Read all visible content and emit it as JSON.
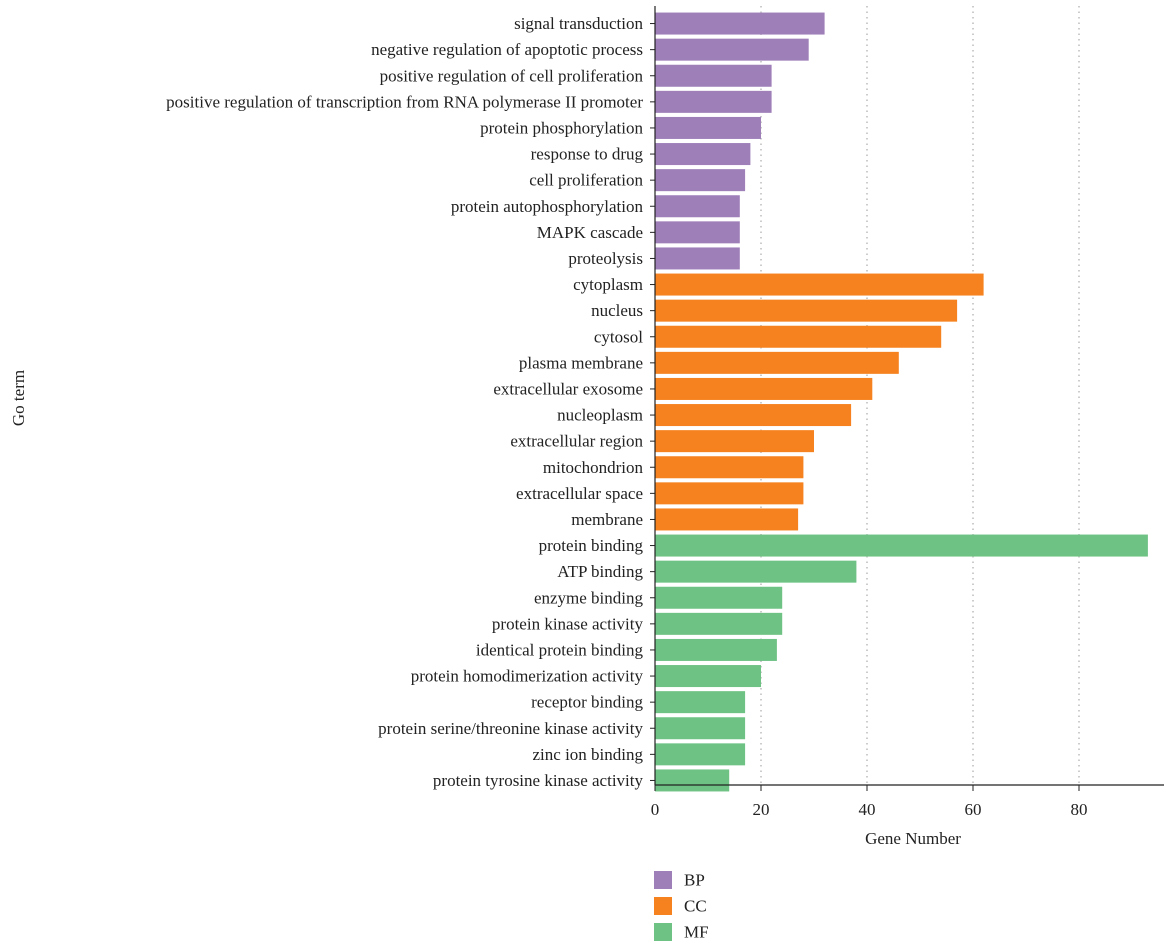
{
  "chart_data": {
    "type": "bar",
    "orientation": "horizontal",
    "xlabel": "Gene Number",
    "ylabel": "Go term",
    "xlim": [
      0,
      97
    ],
    "xticks": [
      0,
      20,
      40,
      60,
      80
    ],
    "grid": "vertical dotted",
    "legend_placement": "bottom",
    "colors": {
      "BP": "#9e7fb8",
      "CC": "#f5821f",
      "MF": "#6ec284"
    },
    "legend": [
      {
        "key": "BP",
        "label": "BP"
      },
      {
        "key": "CC",
        "label": "CC"
      },
      {
        "key": "MF",
        "label": "MF"
      }
    ],
    "bars": [
      {
        "label": "signal transduction",
        "value": 32,
        "group": "BP"
      },
      {
        "label": "negative regulation of apoptotic process",
        "value": 29,
        "group": "BP"
      },
      {
        "label": "positive regulation of cell proliferation",
        "value": 22,
        "group": "BP"
      },
      {
        "label": "positive regulation of transcription from RNA polymerase II promoter",
        "value": 22,
        "group": "BP"
      },
      {
        "label": "protein phosphorylation",
        "value": 20,
        "group": "BP"
      },
      {
        "label": "response to drug",
        "value": 18,
        "group": "BP"
      },
      {
        "label": "cell proliferation",
        "value": 17,
        "group": "BP"
      },
      {
        "label": "protein autophosphorylation",
        "value": 16,
        "group": "BP"
      },
      {
        "label": "MAPK cascade",
        "value": 16,
        "group": "BP"
      },
      {
        "label": "proteolysis",
        "value": 16,
        "group": "BP"
      },
      {
        "label": "cytoplasm",
        "value": 62,
        "group": "CC"
      },
      {
        "label": "nucleus",
        "value": 57,
        "group": "CC"
      },
      {
        "label": "cytosol",
        "value": 54,
        "group": "CC"
      },
      {
        "label": "plasma membrane",
        "value": 46,
        "group": "CC"
      },
      {
        "label": "extracellular exosome",
        "value": 41,
        "group": "CC"
      },
      {
        "label": "nucleoplasm",
        "value": 37,
        "group": "CC"
      },
      {
        "label": "extracellular region",
        "value": 30,
        "group": "CC"
      },
      {
        "label": "mitochondrion",
        "value": 28,
        "group": "CC"
      },
      {
        "label": "extracellular space",
        "value": 28,
        "group": "CC"
      },
      {
        "label": "membrane",
        "value": 27,
        "group": "CC"
      },
      {
        "label": "protein binding",
        "value": 93,
        "group": "MF"
      },
      {
        "label": "ATP binding",
        "value": 38,
        "group": "MF"
      },
      {
        "label": "enzyme binding",
        "value": 24,
        "group": "MF"
      },
      {
        "label": "protein kinase activity",
        "value": 24,
        "group": "MF"
      },
      {
        "label": "identical protein binding",
        "value": 23,
        "group": "MF"
      },
      {
        "label": "protein homodimerization activity",
        "value": 20,
        "group": "MF"
      },
      {
        "label": "receptor binding",
        "value": 17,
        "group": "MF"
      },
      {
        "label": "protein serine/threonine kinase activity",
        "value": 17,
        "group": "MF"
      },
      {
        "label": "zinc ion binding",
        "value": 17,
        "group": "MF"
      },
      {
        "label": "protein tyrosine kinase activity",
        "value": 14,
        "group": "MF"
      }
    ]
  }
}
